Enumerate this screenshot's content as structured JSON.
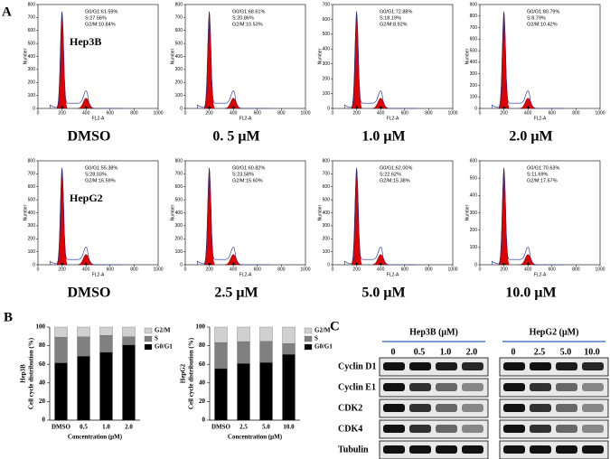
{
  "panel_labels": [
    "A",
    "B",
    "C"
  ],
  "flow": {
    "x_label": "FL2-A",
    "y_label": "Number",
    "xlim": [
      0,
      1000
    ],
    "xticks": [
      0,
      200,
      400,
      600,
      800,
      1000
    ],
    "panels": [
      {
        "cell": "Hep3B",
        "condition": "DMSO",
        "g0g1": "G0/G1:61.59%",
        "s": "S:27.56%",
        "g2m": "G2/M:10.84%",
        "ylim": [
          0,
          800
        ],
        "yticks": [
          0,
          100,
          200,
          300,
          400,
          500,
          600,
          700,
          800
        ]
      },
      {
        "condition": "0. 5 μM",
        "g0g1": "G0/G1:68.61%",
        "s": "S:20.86%",
        "g2m": "G2/M:10.53%",
        "ylim": [
          0,
          800
        ],
        "yticks": [
          0,
          100,
          200,
          300,
          400,
          500,
          600,
          700,
          800
        ]
      },
      {
        "condition": "1.0 μM",
        "g0g1": "G0/G1:72.88%",
        "s": "S:18.19%",
        "g2m": "G2/M:8.92%",
        "ylim": [
          0,
          700
        ],
        "yticks": [
          0,
          100,
          200,
          300,
          400,
          500,
          600,
          700
        ]
      },
      {
        "condition": "2.0 μM",
        "g0g1": "G0/G1:80.79%",
        "s": "S:8.79%",
        "g2m": "G2/M:10.42%",
        "ylim": [
          0,
          900
        ],
        "yticks": [
          0,
          100,
          200,
          300,
          400,
          500,
          600,
          700,
          800,
          900
        ]
      },
      {
        "cell": "HepG2",
        "condition": "DMSO",
        "g0g1": "G0/G1:55.38%",
        "s": "S:28.03%",
        "g2m": "G2/M:16.59%",
        "ylim": [
          0,
          800
        ],
        "yticks": [
          0,
          100,
          200,
          300,
          400,
          500,
          600,
          700,
          800
        ]
      },
      {
        "condition": "2.5 μM",
        "g0g1": "G0/G1:60.82%",
        "s": "S:23.58%",
        "g2m": "G2/M:15.60%",
        "ylim": [
          0,
          800
        ],
        "yticks": [
          0,
          100,
          200,
          300,
          400,
          500,
          600,
          700,
          800
        ]
      },
      {
        "condition": "5.0 μM",
        "g0g1": "G0/G1:62.00%",
        "s": "S:22.62%",
        "g2m": "G2/M:15.38%",
        "ylim": [
          0,
          800
        ],
        "yticks": [
          0,
          100,
          200,
          300,
          400,
          500,
          600,
          700,
          800
        ]
      },
      {
        "condition": "10.0 μM",
        "g0g1": "G0/G1:70.63%",
        "s": "S:11.69%",
        "g2m": "G2/M:17.67%",
        "ylim": [
          0,
          600
        ],
        "yticks": [
          0,
          100,
          200,
          300,
          400,
          500,
          600
        ]
      }
    ]
  },
  "chart_data": [
    {
      "type": "bar",
      "stacked": true,
      "cell_label": "Hep3B",
      "y_label": "Cell cycle distribution (%)",
      "x_label": "Concentration (μM)",
      "categories": [
        "DMSO",
        "0.5",
        "1.0",
        "2.0"
      ],
      "ylim": [
        0,
        100
      ],
      "yticks": [
        0,
        20,
        40,
        60,
        80,
        100
      ],
      "series": [
        {
          "name": "G0/G1",
          "color": "#000000",
          "values": [
            61.59,
            68.61,
            72.88,
            80.79
          ]
        },
        {
          "name": "S",
          "color": "#808080",
          "values": [
            27.56,
            20.86,
            18.19,
            8.79
          ]
        },
        {
          "name": "G2/M",
          "color": "#d0d0d0",
          "values": [
            10.84,
            10.53,
            8.92,
            10.42
          ]
        }
      ]
    },
    {
      "type": "bar",
      "stacked": true,
      "cell_label": "HepG2",
      "y_label": "Cell cycle distribution (%)",
      "x_label": "Concentration (μM)",
      "categories": [
        "DMSO",
        "2.5",
        "5.0",
        "10.0"
      ],
      "ylim": [
        0,
        100
      ],
      "yticks": [
        0,
        20,
        40,
        60,
        80,
        100
      ],
      "series": [
        {
          "name": "G0/G1",
          "color": "#000000",
          "values": [
            55.38,
            60.82,
            62.0,
            70.63
          ]
        },
        {
          "name": "S",
          "color": "#808080",
          "values": [
            28.03,
            23.58,
            22.62,
            11.69
          ]
        },
        {
          "name": "G2/M",
          "color": "#d0d0d0",
          "values": [
            16.59,
            15.6,
            15.38,
            17.67
          ]
        }
      ]
    }
  ],
  "blot": {
    "groups": [
      {
        "title": "Hep3B (μM)",
        "doses": [
          "0",
          "0.5",
          "1.0",
          "2.0"
        ]
      },
      {
        "title": "HepG2 (μM)",
        "doses": [
          "0",
          "2.5",
          "5.0",
          "10.0"
        ]
      }
    ],
    "proteins": [
      "Cyclin D1",
      "Cyclin E1",
      "CDK2",
      "CDK4",
      "Tubulin"
    ]
  }
}
